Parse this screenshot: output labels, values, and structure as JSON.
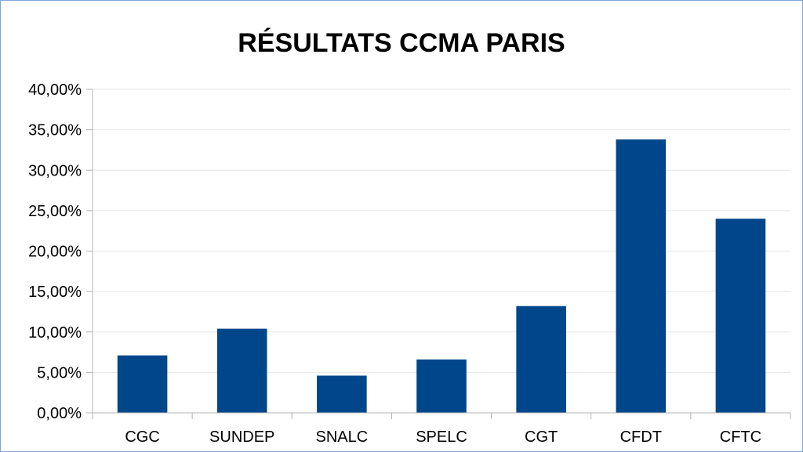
{
  "chart_data": {
    "type": "bar",
    "title": "RÉSULTATS CCMA PARIS",
    "xlabel": "",
    "ylabel": "",
    "categories": [
      "CGC",
      "SUNDEP",
      "SNALC",
      "SPELC",
      "CGT",
      "CFDT",
      "CFTC"
    ],
    "values": [
      7.1,
      10.4,
      4.6,
      6.6,
      13.2,
      33.8,
      24.0
    ],
    "ylim": [
      0,
      40
    ],
    "yticks": [
      "0,00%",
      "5,00%",
      "10,00%",
      "15,00%",
      "20,00%",
      "25,00%",
      "30,00%",
      "35,00%",
      "40,00%"
    ],
    "grid": true,
    "legend": "none",
    "bar_color": "#00468b"
  }
}
